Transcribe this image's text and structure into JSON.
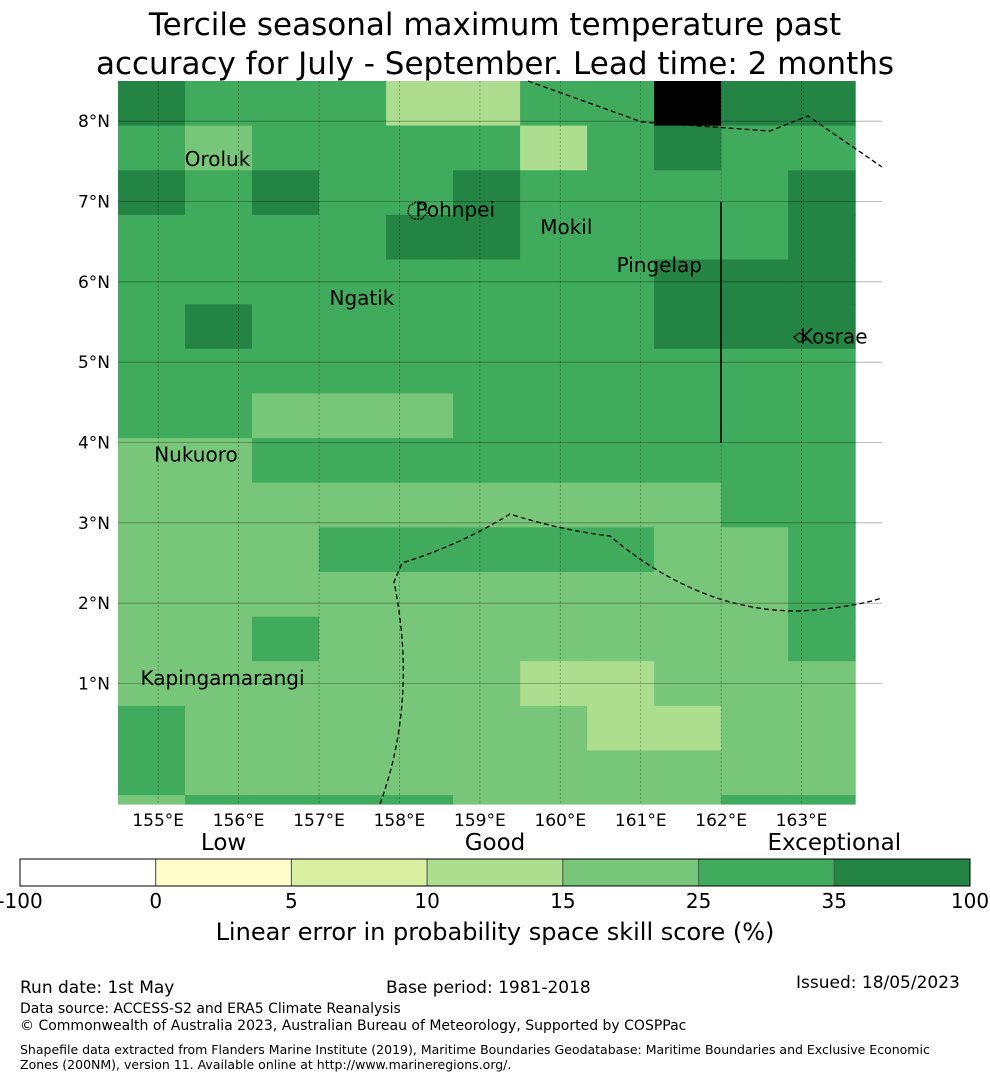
{
  "title": {
    "line1": "Tercile seasonal maximum temperature past",
    "line2": "accuracy for July - September. Lead time: 2 months"
  },
  "map": {
    "lon_range": [
      154.5,
      164.0
    ],
    "lat_range": [
      -0.5,
      8.5
    ],
    "lon_ticks": [
      {
        "value": 155,
        "label": "155°E"
      },
      {
        "value": 156,
        "label": "156°E"
      },
      {
        "value": 157,
        "label": "157°E"
      },
      {
        "value": 158,
        "label": "158°E"
      },
      {
        "value": 159,
        "label": "159°E"
      },
      {
        "value": 160,
        "label": "160°E"
      },
      {
        "value": 161,
        "label": "161°E"
      },
      {
        "value": 162,
        "label": "162°E"
      },
      {
        "value": 163,
        "label": "163°E"
      }
    ],
    "lat_ticks": [
      {
        "value": 1,
        "label": "1°N"
      },
      {
        "value": 2,
        "label": "2°N"
      },
      {
        "value": 3,
        "label": "3°N"
      },
      {
        "value": 4,
        "label": "4°N"
      },
      {
        "value": 5,
        "label": "5°N"
      },
      {
        "value": 6,
        "label": "6°N"
      },
      {
        "value": 7,
        "label": "7°N"
      },
      {
        "value": 8,
        "label": "8°N"
      }
    ],
    "places": [
      {
        "name": "Oroluk",
        "lon": 155.33,
        "lat": 7.53
      },
      {
        "name": "Pohnpei",
        "lon": 158.2,
        "lat": 6.9
      },
      {
        "name": "Mokil",
        "lon": 159.75,
        "lat": 6.68
      },
      {
        "name": "Pingelap",
        "lon": 160.7,
        "lat": 6.21
      },
      {
        "name": "Ngatik",
        "lon": 157.13,
        "lat": 5.8
      },
      {
        "name": "Kosrae",
        "lon": 162.98,
        "lat": 5.32
      },
      {
        "name": "Nukuoro",
        "lon": 154.95,
        "lat": 3.85
      },
      {
        "name": "Kapingamarangi",
        "lon": 154.78,
        "lat": 1.07
      }
    ],
    "grid": {
      "lon0": 154.5,
      "dlon": 0.8333,
      "lat_top": 8.5,
      "dlat": 0.5556,
      "cells": [
        "65553355866",
        "54555535655",
        "65655655556",
        "55556655556",
        "55555555666",
        "56555555666",
        "55555555555",
        "55444555555",
        "44555555555",
        "44444444455",
        "44455555445",
        "44444444445",
        "44544444445",
        "44444433444",
        "54444443344",
        "54444444444",
        "45555444455",
        "45554444445",
        "55554555445"
      ]
    }
  },
  "colorbar": {
    "categories": [
      {
        "label": "Low",
        "center": 1.5
      },
      {
        "label": "Good",
        "center": 3.5
      },
      {
        "label": "Exceptional",
        "center": 6
      }
    ],
    "bins": [
      {
        "color": "#ffffff"
      },
      {
        "color": "#ffffcc"
      },
      {
        "color": "#d9f0a3"
      },
      {
        "color": "#addd8e"
      },
      {
        "color": "#78c679"
      },
      {
        "color": "#41ab5d"
      },
      {
        "color": "#238443"
      }
    ],
    "ticks": [
      "-100",
      "0",
      "5",
      "10",
      "15",
      "25",
      "35",
      "100"
    ],
    "title": "Linear error in probability space skill score (%)"
  },
  "footer": {
    "run_date": "Run date: 1st May",
    "base_period": "Base period: 1981-2018",
    "issued": "Issued: 18/05/2023",
    "data_source": "Data source: ACCESS-S2 and ERA5 Climate Reanalysis",
    "copyright": "© Commonwealth of Australia 2023, Australian Bureau of Meteorology, Supported by COSPPac",
    "shapefile": "Shapefile data extracted from Flanders Marine Institute (2019), Maritime Boundaries Geodatabase: Maritime Boundaries and Exclusive Economic Zones (200NM), version 11. Available online at http://www.marineregions.org/."
  }
}
